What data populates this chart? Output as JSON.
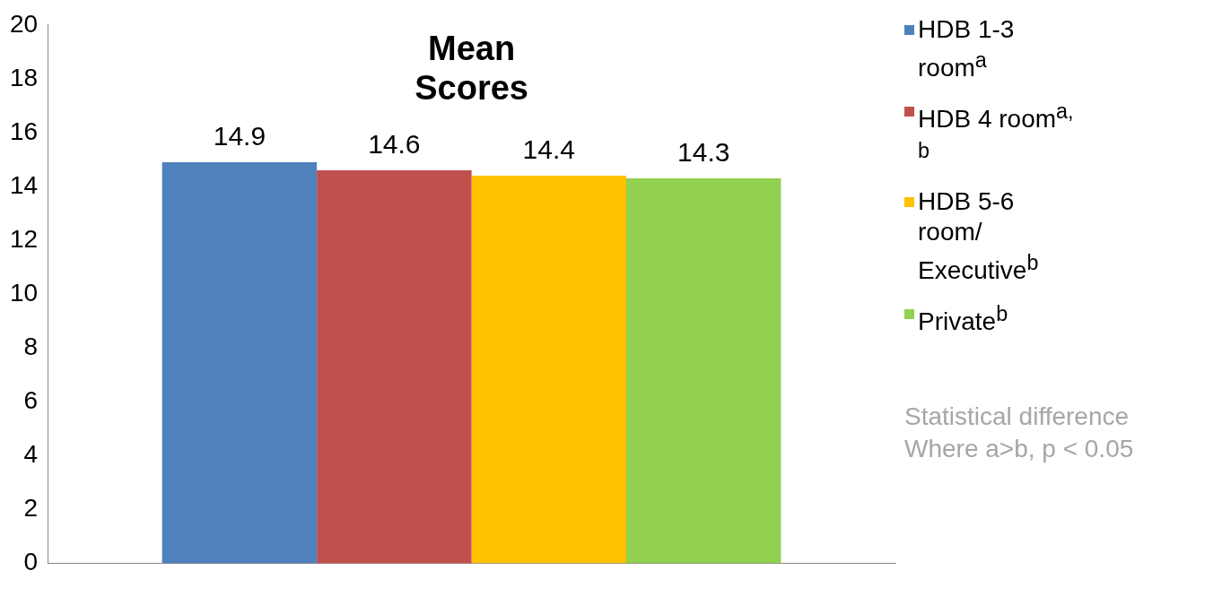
{
  "chart_data": {
    "type": "bar",
    "title": "Mean Scores",
    "categories": [
      null
    ],
    "series": [
      {
        "name": "HDB 1-3 room$^{a}$",
        "color": "#4f81bd",
        "values": [
          14.9
        ]
      },
      {
        "name": "HDB 4 room$^{a, b}$",
        "color": "#c0504d",
        "values": [
          14.6
        ]
      },
      {
        "name": "HDB 5-6 room/ Executive$^{b}$",
        "color": "#ffc000",
        "values": [
          14.4
        ]
      },
      {
        "name": "Private$^{b}$",
        "color": "#92d050",
        "values": [
          14.3
        ]
      }
    ],
    "ylim": [
      0,
      20
    ],
    "yticks": [
      0,
      2,
      4,
      6,
      8,
      10,
      12,
      14,
      16,
      18,
      20
    ],
    "grid": false,
    "legend": "right",
    "data_labels": true,
    "annotations": [
      "Statistical difference Where a>b, p < 0.05"
    ]
  }
}
